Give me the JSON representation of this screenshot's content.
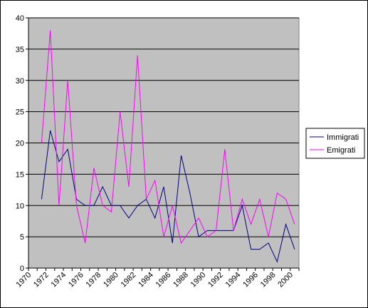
{
  "chart_data": {
    "type": "line",
    "categories": [
      "1970",
      null,
      "1972",
      null,
      "1974",
      null,
      "1976",
      null,
      "1978",
      null,
      "1980",
      null,
      "1982",
      null,
      "1984",
      null,
      "1986",
      null,
      "1988",
      null,
      "1990",
      null,
      "1992",
      null,
      "1994",
      null,
      "1996",
      null,
      "1998",
      null,
      "2000"
    ],
    "series": [
      {
        "name": "Immigrati",
        "color": "#000080",
        "values": [
          null,
          11,
          22,
          17,
          19,
          11,
          10,
          10,
          13,
          10,
          10,
          8,
          10,
          11,
          8,
          13,
          4,
          18,
          12,
          5,
          6,
          6,
          6,
          6,
          10,
          3,
          3,
          4,
          1,
          7,
          3
        ]
      },
      {
        "name": "Emigrati",
        "color": "#ff00ff",
        "values": [
          null,
          20,
          38,
          10,
          30,
          10,
          4,
          16,
          10,
          9,
          25,
          13,
          34,
          11,
          14,
          5,
          10,
          4,
          6,
          8,
          5,
          6,
          19,
          6,
          11,
          7,
          11,
          5,
          12,
          11,
          7
        ]
      }
    ],
    "ylim": [
      0,
      40
    ],
    "yticks": [
      0,
      5,
      10,
      15,
      20,
      25,
      30,
      35,
      40
    ],
    "grid": true,
    "legend": "right",
    "plot_background": "#c0c0c0"
  }
}
